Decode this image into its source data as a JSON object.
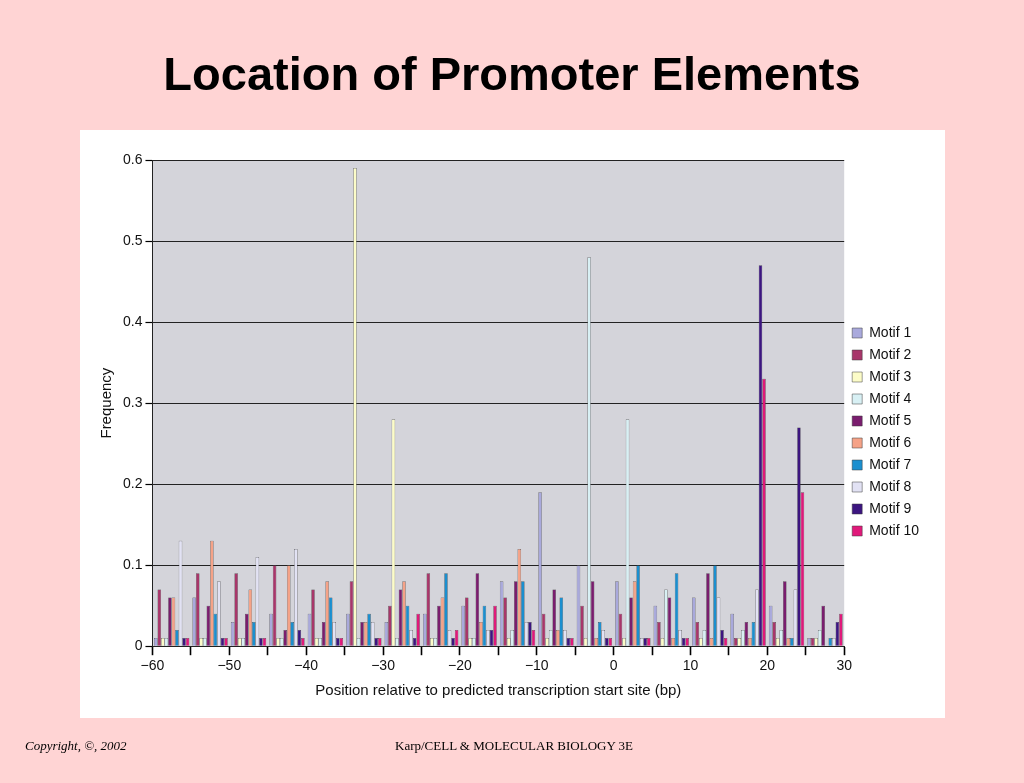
{
  "chart_data": {
    "type": "bar",
    "title": "Location of Promoter Elements",
    "xlabel": "Position relative to predicted transcription start site (bp)",
    "ylabel": "Frequency",
    "x": [
      -57.5,
      -52.5,
      -47.5,
      -42.5,
      -37.5,
      -32.5,
      -27.5,
      -22.5,
      -17.5,
      -12.5,
      -7.5,
      -2.5,
      2.5,
      7.5,
      12.5,
      17.5,
      22.5,
      27.5
    ],
    "xlim": [
      -60,
      30
    ],
    "xticks": [
      {
        "value": -60,
        "label": "−60"
      },
      {
        "value": -55,
        "label": null
      },
      {
        "value": -50,
        "label": "−50"
      },
      {
        "value": -45,
        "label": null
      },
      {
        "value": -40,
        "label": "−40"
      },
      {
        "value": -35,
        "label": null
      },
      {
        "value": -30,
        "label": "−30"
      },
      {
        "value": -25,
        "label": null
      },
      {
        "value": -20,
        "label": "−20"
      },
      {
        "value": -15,
        "label": null
      },
      {
        "value": -10,
        "label": "−10"
      },
      {
        "value": -5,
        "label": null
      },
      0,
      {
        "value": 5,
        "label": null
      },
      10,
      {
        "value": 15,
        "label": null
      },
      20,
      {
        "value": 25,
        "label": null
      },
      30
    ],
    "ylim": [
      0,
      0.6
    ],
    "yticks": [
      0,
      0.1,
      0.2,
      0.3,
      0.4,
      0.5,
      0.6
    ],
    "grid": "y",
    "legend": "right",
    "series": [
      {
        "name": "Motif 1",
        "color": "#a9a9dc",
        "values": [
          0.01,
          0.06,
          0.03,
          0.04,
          0.04,
          0.04,
          0.03,
          0.04,
          0.05,
          0.08,
          0.19,
          0.1,
          0.08,
          0.05,
          0.06,
          0.04,
          0.05,
          0.01
        ]
      },
      {
        "name": "Motif 2",
        "color": "#a8366a",
        "values": [
          0.07,
          0.09,
          0.09,
          0.1,
          0.07,
          0.08,
          0.05,
          0.09,
          0.06,
          0.06,
          0.04,
          0.05,
          0.04,
          0.03,
          0.03,
          0.01,
          0.03,
          0.01
        ]
      },
      {
        "name": "Motif 3",
        "color": "#fcfcc8",
        "values": [
          0.01,
          0.01,
          0.01,
          0.01,
          0.01,
          0.59,
          0.28,
          0.01,
          0.01,
          0.01,
          0.01,
          0.01,
          0.01,
          0.01,
          0.01,
          0.01,
          0.01,
          0.01
        ]
      },
      {
        "name": "Motif 4",
        "color": "#d8f0f4",
        "values": [
          0.01,
          0.01,
          0.01,
          0.01,
          0.01,
          0.01,
          0.01,
          0.01,
          0.01,
          0.02,
          0.02,
          0.48,
          0.28,
          0.07,
          0.02,
          0.02,
          0.02,
          0.02
        ]
      },
      {
        "name": "Motif 5",
        "color": "#7a1d6e",
        "values": [
          0.06,
          0.05,
          0.04,
          0.02,
          0.03,
          0.03,
          0.07,
          0.05,
          0.09,
          0.08,
          0.07,
          0.08,
          0.06,
          0.06,
          0.09,
          0.03,
          0.08,
          0.05
        ]
      },
      {
        "name": "Motif 6",
        "color": "#f5a287",
        "values": [
          0.06,
          0.13,
          0.07,
          0.1,
          0.08,
          0.03,
          0.08,
          0.06,
          0.03,
          0.12,
          0.02,
          0.01,
          0.08,
          0.01,
          0.01,
          0.01,
          0.01,
          0
        ]
      },
      {
        "name": "Motif 7",
        "color": "#1b8fcf",
        "values": [
          0.02,
          0.04,
          0.03,
          0.03,
          0.06,
          0.04,
          0.05,
          0.09,
          0.05,
          0.08,
          0.06,
          0.03,
          0.1,
          0.09,
          0.1,
          0.03,
          0.01,
          0.01
        ]
      },
      {
        "name": "Motif 8",
        "color": "#e2e2f4",
        "values": [
          0.13,
          0.08,
          0.11,
          0.12,
          0.03,
          0.03,
          0.02,
          0.02,
          0.02,
          0.03,
          0.02,
          0.02,
          0.01,
          0.02,
          0.06,
          0.07,
          0.07,
          0.01
        ]
      },
      {
        "name": "Motif 9",
        "color": "#3c1580",
        "values": [
          0.01,
          0.01,
          0.01,
          0.02,
          0.01,
          0.01,
          0.01,
          0.01,
          0.02,
          0.03,
          0.01,
          0.01,
          0.01,
          0.01,
          0.02,
          0.47,
          0.27,
          0.03
        ]
      },
      {
        "name": "Motif 10",
        "color": "#e0197a",
        "values": [
          0.01,
          0.01,
          0.01,
          0.01,
          0.01,
          0.01,
          0.04,
          0.02,
          0.05,
          0.02,
          0.01,
          0.01,
          0.01,
          0.01,
          0.01,
          0.33,
          0.19,
          0.04
        ]
      }
    ],
    "annotations": [
      "Copyright, ©, 2002",
      "Karp/CELL & MOLECULAR BIOLOGY 3E"
    ]
  }
}
